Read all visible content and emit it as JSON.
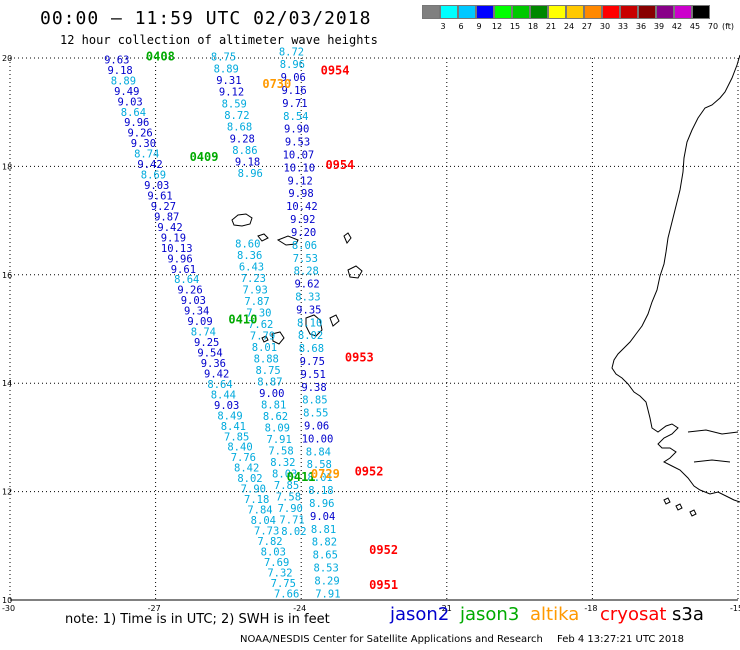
{
  "header": {
    "title": "00:00 – 11:59 UTC 02/03/2018",
    "subtitle": "12 hour collection of altimeter wave heights"
  },
  "legend": {
    "unit": "(ft)",
    "bins": [
      {
        "label": "3",
        "color": "#808080"
      },
      {
        "label": "6",
        "color": "#00ffff"
      },
      {
        "label": "9",
        "color": "#00c8ff"
      },
      {
        "label": "12",
        "color": "#0000ff"
      },
      {
        "label": "15",
        "color": "#00ff00"
      },
      {
        "label": "18",
        "color": "#00c800"
      },
      {
        "label": "21",
        "color": "#008800"
      },
      {
        "label": "24",
        "color": "#ffff00"
      },
      {
        "label": "27",
        "color": "#ffc800"
      },
      {
        "label": "30",
        "color": "#ff8800"
      },
      {
        "label": "33",
        "color": "#ff0000"
      },
      {
        "label": "36",
        "color": "#c80000"
      },
      {
        "label": "39",
        "color": "#880000"
      },
      {
        "label": "42",
        "color": "#880088"
      },
      {
        "label": "45",
        "color": "#cc00cc"
      },
      {
        "label": "70",
        "color": "#000000"
      }
    ]
  },
  "chart_data": {
    "type": "scatter",
    "xlabel": "",
    "ylabel": "",
    "xlim": [
      -30,
      -15
    ],
    "ylim": [
      10,
      20
    ],
    "x_ticks": [
      -30,
      -27,
      -24,
      -21,
      -18,
      -15
    ],
    "y_ticks": [
      10,
      12,
      14,
      16,
      18,
      20
    ],
    "grid": true,
    "mission_colors": {
      "jason2": "#0000cc",
      "jason3": "#00aa00",
      "altika": "#ff9900",
      "cryosat": "#ff0000",
      "s3a": "#000000"
    },
    "pass_labels": [
      {
        "text": "0408",
        "lon": -27.2,
        "lat": 19.95,
        "mission": "jason3"
      },
      {
        "text": "0409",
        "lon": -26.3,
        "lat": 18.1,
        "mission": "jason3"
      },
      {
        "text": "0410",
        "lon": -25.5,
        "lat": 15.1,
        "mission": "jason3"
      },
      {
        "text": "0411",
        "lon": -24.3,
        "lat": 12.2,
        "mission": "jason3"
      },
      {
        "text": "0730",
        "lon": -24.8,
        "lat": 19.45,
        "mission": "altika"
      },
      {
        "text": "0729",
        "lon": -23.8,
        "lat": 12.25,
        "mission": "altika"
      },
      {
        "text": "0954",
        "lon": -23.6,
        "lat": 19.7,
        "mission": "cryosat"
      },
      {
        "text": "0954",
        "lon": -23.5,
        "lat": 17.95,
        "mission": "cryosat"
      },
      {
        "text": "0953",
        "lon": -23.1,
        "lat": 14.4,
        "mission": "cryosat"
      },
      {
        "text": "0952",
        "lon": -22.9,
        "lat": 12.3,
        "mission": "cryosat"
      },
      {
        "text": "0952",
        "lon": -22.6,
        "lat": 10.85,
        "mission": "cryosat"
      },
      {
        "text": "0951",
        "lon": -22.6,
        "lat": 10.2,
        "mission": "cryosat"
      }
    ],
    "tracks": [
      {
        "name": "jason3_0408_0409",
        "start": {
          "lon": -27.8,
          "lat": 19.9
        },
        "end": {
          "lon": -24.3,
          "lat": 10.05
        },
        "points": [
          {
            "v": "9.63",
            "c": "#0000cc"
          },
          {
            "v": "9.18",
            "c": "#0000cc"
          },
          {
            "v": "8.89",
            "c": "#00aadd"
          },
          {
            "v": "9.49",
            "c": "#0000cc"
          },
          {
            "v": "9.03",
            "c": "#0000cc"
          },
          {
            "v": "8.64",
            "c": "#00aadd"
          },
          {
            "v": "9.96",
            "c": "#0000cc"
          },
          {
            "v": "9.26",
            "c": "#0000cc"
          },
          {
            "v": "9.30",
            "c": "#0000cc"
          },
          {
            "v": "8.74",
            "c": "#00aadd"
          },
          {
            "v": "9.42",
            "c": "#0000cc"
          },
          {
            "v": "8.69",
            "c": "#00aadd"
          },
          {
            "v": "9.03",
            "c": "#0000cc"
          },
          {
            "v": "9.61",
            "c": "#0000cc"
          },
          {
            "v": "9.27",
            "c": "#0000cc"
          },
          {
            "v": "9.87",
            "c": "#0000cc"
          },
          {
            "v": "9.42",
            "c": "#0000cc"
          },
          {
            "v": "9.19",
            "c": "#0000cc"
          },
          {
            "v": "10.13",
            "c": "#0000cc"
          },
          {
            "v": "9.96",
            "c": "#0000cc"
          },
          {
            "v": "9.61",
            "c": "#0000cc"
          },
          {
            "v": "8.64",
            "c": "#00aadd"
          },
          {
            "v": "9.26",
            "c": "#0000cc"
          },
          {
            "v": "9.03",
            "c": "#0000cc"
          },
          {
            "v": "9.34",
            "c": "#0000cc"
          },
          {
            "v": "9.09",
            "c": "#0000cc"
          },
          {
            "v": "8.74",
            "c": "#00aadd"
          },
          {
            "v": "9.25",
            "c": "#0000cc"
          },
          {
            "v": "9.54",
            "c": "#0000cc"
          },
          {
            "v": "9.36",
            "c": "#0000cc"
          },
          {
            "v": "9.42",
            "c": "#0000cc"
          },
          {
            "v": "8.64",
            "c": "#00aadd"
          },
          {
            "v": "8.44",
            "c": "#00aadd"
          },
          {
            "v": "9.03",
            "c": "#0000cc"
          },
          {
            "v": "8.49",
            "c": "#00aadd"
          },
          {
            "v": "8.41",
            "c": "#00aadd"
          },
          {
            "v": "7.85",
            "c": "#00aadd"
          },
          {
            "v": "8.40",
            "c": "#00aadd"
          },
          {
            "v": "7.76",
            "c": "#00aadd"
          },
          {
            "v": "8.42",
            "c": "#00aadd"
          },
          {
            "v": "8.02",
            "c": "#00aadd"
          },
          {
            "v": "7.90",
            "c": "#00aadd"
          },
          {
            "v": "7.18",
            "c": "#00aadd"
          },
          {
            "v": "7.84",
            "c": "#00aadd"
          },
          {
            "v": "8.04",
            "c": "#00aadd"
          },
          {
            "v": "7.73",
            "c": "#00aadd"
          },
          {
            "v": "7.82",
            "c": "#00aadd"
          },
          {
            "v": "8.03",
            "c": "#00aadd"
          },
          {
            "v": "7.69",
            "c": "#00aadd"
          },
          {
            "v": "7.32",
            "c": "#00aadd"
          },
          {
            "v": "7.75",
            "c": "#00aadd"
          },
          {
            "v": "7.66",
            "c": "#00aadd"
          }
        ]
      },
      {
        "name": "jason2_left",
        "start": {
          "lon": -25.6,
          "lat": 19.95
        },
        "end": {
          "lon": -25.05,
          "lat": 17.8
        },
        "points": [
          {
            "v": "8.75",
            "c": "#00aadd"
          },
          {
            "v": "8.89",
            "c": "#00aadd"
          },
          {
            "v": "9.31",
            "c": "#0000cc"
          },
          {
            "v": "9.12",
            "c": "#0000cc"
          },
          {
            "v": "8.59",
            "c": "#00aadd"
          },
          {
            "v": "8.72",
            "c": "#00aadd"
          },
          {
            "v": "8.68",
            "c": "#00aadd"
          },
          {
            "v": "9.28",
            "c": "#0000cc"
          },
          {
            "v": "8.86",
            "c": "#00aadd"
          },
          {
            "v": "9.18",
            "c": "#0000cc"
          },
          {
            "v": "8.96",
            "c": "#00aadd"
          }
        ]
      },
      {
        "name": "jason2_right",
        "start": {
          "lon": -24.2,
          "lat": 20.05
        },
        "end": {
          "lon": -23.45,
          "lat": 10.05
        },
        "points": [
          {
            "v": "8.72",
            "c": "#00aadd"
          },
          {
            "v": "8.96",
            "c": "#00aadd"
          },
          {
            "v": "9.06",
            "c": "#0000cc"
          },
          {
            "v": "9.16",
            "c": "#0000cc"
          },
          {
            "v": "9.71",
            "c": "#0000cc"
          },
          {
            "v": "8.54",
            "c": "#00aadd"
          },
          {
            "v": "9.90",
            "c": "#0000cc"
          },
          {
            "v": "9.53",
            "c": "#0000cc"
          },
          {
            "v": "10.07",
            "c": "#0000cc"
          },
          {
            "v": "10.10",
            "c": "#0000cc"
          },
          {
            "v": "9.12",
            "c": "#0000cc"
          },
          {
            "v": "9.98",
            "c": "#0000cc"
          },
          {
            "v": "10.42",
            "c": "#0000cc"
          },
          {
            "v": "9.92",
            "c": "#0000cc"
          },
          {
            "v": "9.20",
            "c": "#0000cc"
          },
          {
            "v": "8.06",
            "c": "#00aadd"
          },
          {
            "v": "7.53",
            "c": "#00aadd"
          },
          {
            "v": "8.28",
            "c": "#00aadd"
          },
          {
            "v": "9.62",
            "c": "#0000cc"
          },
          {
            "v": "8.33",
            "c": "#00aadd"
          },
          {
            "v": "9.35",
            "c": "#0000cc"
          },
          {
            "v": "8.10",
            "c": "#00aadd"
          },
          {
            "v": "8.02",
            "c": "#00aadd"
          },
          {
            "v": "8.68",
            "c": "#00aadd"
          },
          {
            "v": "9.75",
            "c": "#0000cc"
          },
          {
            "v": "9.51",
            "c": "#0000cc"
          },
          {
            "v": "9.38",
            "c": "#0000cc"
          },
          {
            "v": "8.85",
            "c": "#00aadd"
          },
          {
            "v": "8.55",
            "c": "#00aadd"
          },
          {
            "v": "9.06",
            "c": "#0000cc"
          },
          {
            "v": "10.00",
            "c": "#0000cc"
          },
          {
            "v": "8.84",
            "c": "#00aadd"
          },
          {
            "v": "8.58",
            "c": "#00aadd"
          },
          {
            "v": "8.01",
            "c": "#00aadd"
          },
          {
            "v": "8.18",
            "c": "#00aadd"
          },
          {
            "v": "8.96",
            "c": "#00aadd"
          },
          {
            "v": "9.04",
            "c": "#0000cc"
          },
          {
            "v": "8.81",
            "c": "#00aadd"
          },
          {
            "v": "8.82",
            "c": "#00aadd"
          },
          {
            "v": "8.65",
            "c": "#00aadd"
          },
          {
            "v": "8.53",
            "c": "#00aadd"
          },
          {
            "v": "8.29",
            "c": "#00aadd"
          },
          {
            "v": "7.91",
            "c": "#00aadd"
          }
        ]
      },
      {
        "name": "jason2_mid",
        "start": {
          "lon": -25.1,
          "lat": 16.5
        },
        "end": {
          "lon": -24.15,
          "lat": 11.2
        },
        "points": [
          {
            "v": "8.60",
            "c": "#00aadd"
          },
          {
            "v": "8.36",
            "c": "#00aadd"
          },
          {
            "v": "6.43",
            "c": "#00aadd"
          },
          {
            "v": "7.23",
            "c": "#00aadd"
          },
          {
            "v": "7.93",
            "c": "#00aadd"
          },
          {
            "v": "7.87",
            "c": "#00aadd"
          },
          {
            "v": "7.30",
            "c": "#00aadd"
          },
          {
            "v": "7.62",
            "c": "#00aadd"
          },
          {
            "v": "7.79",
            "c": "#00aadd"
          },
          {
            "v": "8.01",
            "c": "#00aadd"
          },
          {
            "v": "8.88",
            "c": "#00aadd"
          },
          {
            "v": "8.75",
            "c": "#00aadd"
          },
          {
            "v": "8.87",
            "c": "#00aadd"
          },
          {
            "v": "9.00",
            "c": "#0000cc"
          },
          {
            "v": "8.81",
            "c": "#00aadd"
          },
          {
            "v": "8.62",
            "c": "#00aadd"
          },
          {
            "v": "8.09",
            "c": "#00aadd"
          },
          {
            "v": "7.91",
            "c": "#00aadd"
          },
          {
            "v": "7.58",
            "c": "#00aadd"
          },
          {
            "v": "8.32",
            "c": "#00aadd"
          },
          {
            "v": "8.03",
            "c": "#00aadd"
          },
          {
            "v": "7.85",
            "c": "#00aadd"
          },
          {
            "v": "7.58",
            "c": "#00aadd"
          },
          {
            "v": "7.90",
            "c": "#00aadd"
          },
          {
            "v": "7.71",
            "c": "#00aadd"
          },
          {
            "v": "8.02",
            "c": "#00aadd"
          }
        ]
      }
    ]
  },
  "footer": {
    "note": "note: 1) Time is in UTC; 2) SWH is in feet",
    "missions": [
      {
        "label": "jason2",
        "color": "#0000cc"
      },
      {
        "label": "jason3",
        "color": "#00aa00"
      },
      {
        "label": "altika",
        "color": "#ff9900"
      },
      {
        "label": "cryosat",
        "color": "#ff0000"
      },
      {
        "label": "s3a",
        "color": "#000000"
      }
    ],
    "credit": "NOAA/NESDIS Center for Satellite Applications and Research",
    "timestamp": "Feb  4 13:27:21 UTC 2018"
  }
}
